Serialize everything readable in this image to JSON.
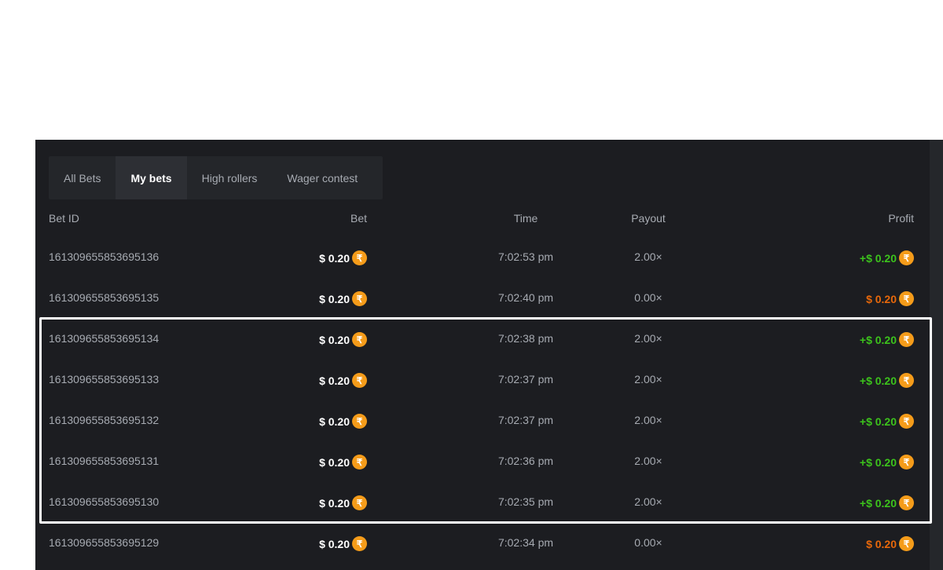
{
  "tabs": [
    {
      "label": "All Bets"
    },
    {
      "label": "My bets",
      "active": true
    },
    {
      "label": "High rollers"
    },
    {
      "label": "Wager contest"
    }
  ],
  "columns": {
    "bet_id": "Bet ID",
    "bet": "Bet",
    "time": "Time",
    "payout": "Payout",
    "profit": "Profit"
  },
  "currency_icon": "rupee-coin-icon",
  "colors": {
    "win": "#3cc31c",
    "loss": "#e8680a",
    "coin": "#f59c1a"
  },
  "rows": [
    {
      "id": "161309655853695136",
      "bet": "$ 0.20",
      "time": "7:02:53 pm",
      "payout": "2.00×",
      "profit": "+$ 0.20",
      "result": "win"
    },
    {
      "id": "161309655853695135",
      "bet": "$ 0.20",
      "time": "7:02:40 pm",
      "payout": "0.00×",
      "profit": "$ 0.20",
      "result": "loss"
    },
    {
      "id": "161309655853695134",
      "bet": "$ 0.20",
      "time": "7:02:38 pm",
      "payout": "2.00×",
      "profit": "+$ 0.20",
      "result": "win"
    },
    {
      "id": "161309655853695133",
      "bet": "$ 0.20",
      "time": "7:02:37 pm",
      "payout": "2.00×",
      "profit": "+$ 0.20",
      "result": "win"
    },
    {
      "id": "161309655853695132",
      "bet": "$ 0.20",
      "time": "7:02:37 pm",
      "payout": "2.00×",
      "profit": "+$ 0.20",
      "result": "win"
    },
    {
      "id": "161309655853695131",
      "bet": "$ 0.20",
      "time": "7:02:36 pm",
      "payout": "2.00×",
      "profit": "+$ 0.20",
      "result": "win"
    },
    {
      "id": "161309655853695130",
      "bet": "$ 0.20",
      "time": "7:02:35 pm",
      "payout": "2.00×",
      "profit": "+$ 0.20",
      "result": "win"
    },
    {
      "id": "161309655853695129",
      "bet": "$ 0.20",
      "time": "7:02:34 pm",
      "payout": "0.00×",
      "profit": "$ 0.20",
      "result": "loss"
    }
  ],
  "coin_glyph": "₹"
}
